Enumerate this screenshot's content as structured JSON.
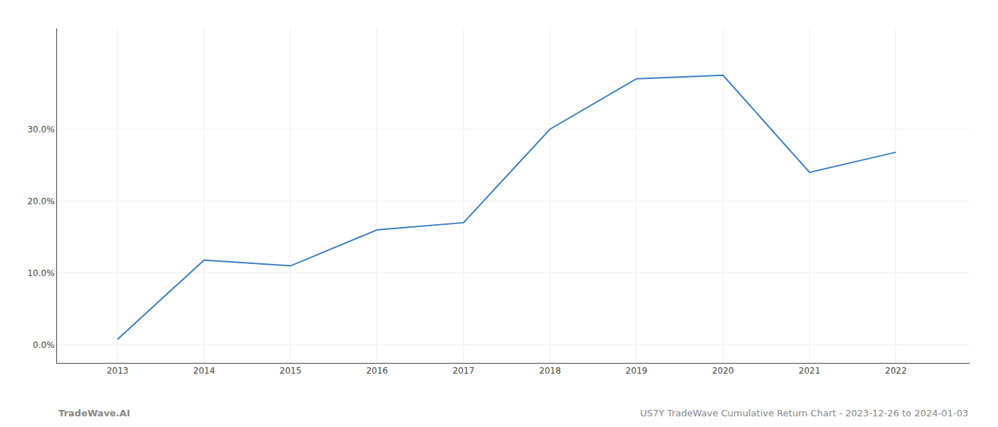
{
  "chart_data": {
    "type": "line",
    "x": [
      2013,
      2014,
      2015,
      2016,
      2017,
      2018,
      2019,
      2020,
      2021,
      2022
    ],
    "values": [
      0.008,
      0.118,
      0.11,
      0.16,
      0.17,
      0.3,
      0.37,
      0.375,
      0.24,
      0.268
    ],
    "color": "#3a7ebf",
    "xlim": [
      2012.3,
      2022.85
    ],
    "xticks": [
      2013,
      2014,
      2015,
      2016,
      2017,
      2018,
      2019,
      2020,
      2021,
      2022
    ],
    "ylim": [
      -0.025,
      0.44
    ],
    "yticks": [
      {
        "value": 0.0,
        "label": "0.0%"
      },
      {
        "value": 0.1,
        "label": "10.0%"
      },
      {
        "value": 0.2,
        "label": "20.0%"
      },
      {
        "value": 0.3,
        "label": "30.0%"
      }
    ],
    "grid": true,
    "annotations": [
      "TradeWave.AI",
      "US7Y TradeWave Cumulative Return Chart - 2023-12-26 to 2024-01-03"
    ]
  }
}
